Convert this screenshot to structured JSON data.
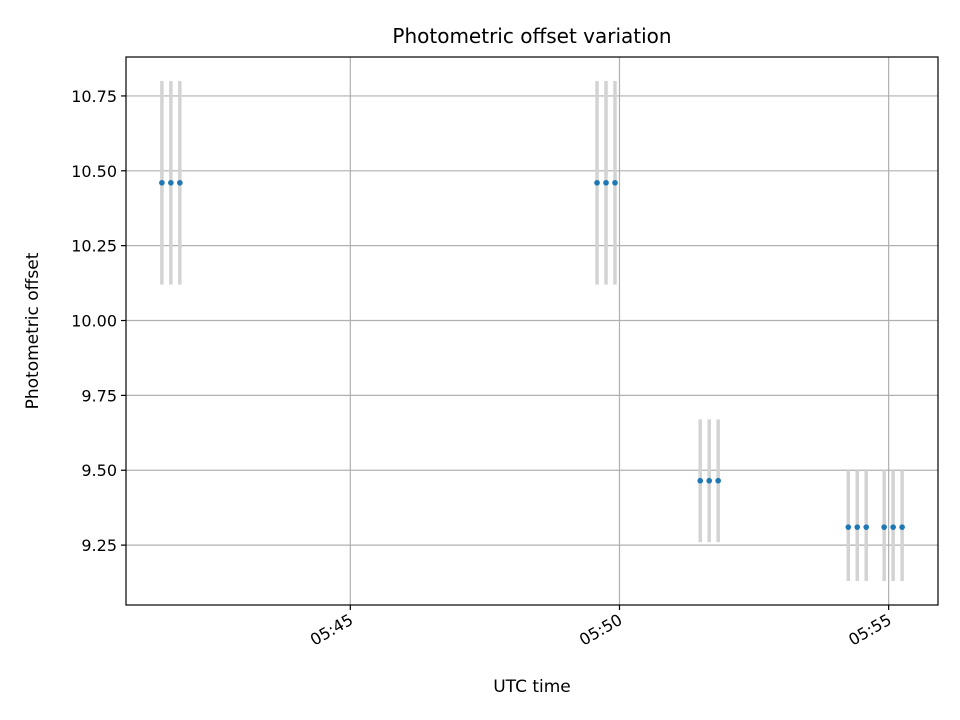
{
  "chart_data": {
    "type": "scatter",
    "title": "Photometric offset variation",
    "xlabel": "UTC time",
    "ylabel": "Photometric offset",
    "x_axis_type": "time",
    "xlim": [
      "05:40:50",
      "05:55:55"
    ],
    "ylim": [
      9.05,
      10.88
    ],
    "x_ticks": [
      "05:45",
      "05:50",
      "05:55"
    ],
    "y_ticks": [
      "9.25",
      "9.50",
      "9.75",
      "10.00",
      "10.25",
      "10.50",
      "10.75"
    ],
    "grid": true,
    "legend": "none",
    "colors": {
      "marker": "#1f77b4",
      "errorbar": "#d3d3d3",
      "grid": "#b0b0b0",
      "axes": "#000000"
    },
    "series": [
      {
        "x": [
          "05:41:30",
          "05:41:40",
          "05:41:50",
          "05:49:35",
          "05:49:45",
          "05:49:55",
          "05:51:30",
          "05:51:40",
          "05:51:50",
          "05:54:15",
          "05:54:25",
          "05:54:35",
          "05:54:55",
          "05:55:05",
          "05:55:15"
        ],
        "y": [
          10.46,
          10.46,
          10.46,
          10.46,
          10.46,
          10.46,
          9.465,
          9.465,
          9.465,
          9.31,
          9.31,
          9.31,
          9.31,
          9.31,
          9.31
        ],
        "yerr_low": [
          10.12,
          10.12,
          10.12,
          10.12,
          10.12,
          10.12,
          9.26,
          9.26,
          9.26,
          9.13,
          9.13,
          9.13,
          9.13,
          9.13,
          9.13
        ],
        "yerr_high": [
          10.8,
          10.8,
          10.8,
          10.8,
          10.8,
          10.8,
          9.67,
          9.67,
          9.67,
          9.5,
          9.5,
          9.5,
          9.5,
          9.5,
          9.5
        ]
      }
    ]
  }
}
